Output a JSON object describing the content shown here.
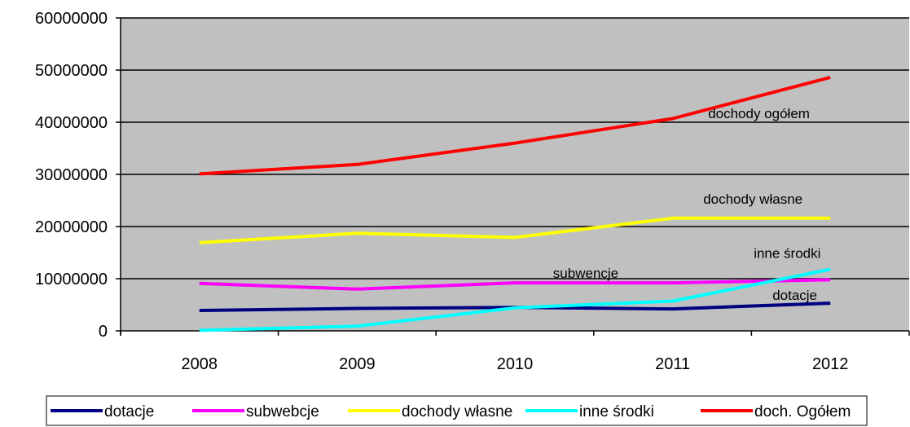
{
  "chart_data": {
    "type": "line",
    "categories": [
      "2008",
      "2009",
      "2010",
      "2011",
      "2012"
    ],
    "ylim": [
      0,
      60000000
    ],
    "y_ticks": [
      "0",
      "10000000",
      "20000000",
      "30000000",
      "40000000",
      "50000000",
      "60000000"
    ],
    "grid": true,
    "plot_background": "#c0c0c0",
    "legend_position": "bottom",
    "series": [
      {
        "name": "dotacje",
        "color": "#000080",
        "values": [
          3900000,
          4300000,
          4500000,
          4200000,
          5300000
        ]
      },
      {
        "name": "subwebcje",
        "color": "#ff00ff",
        "values": [
          9100000,
          8000000,
          9200000,
          9200000,
          9800000
        ]
      },
      {
        "name": "dochody własne",
        "color": "#ffff00",
        "values": [
          16900000,
          18700000,
          17900000,
          21600000,
          21600000
        ]
      },
      {
        "name": "inne środki",
        "color": "#00ffff",
        "values": [
          100000,
          900000,
          4400000,
          5700000,
          11800000
        ]
      },
      {
        "name": "doch. Ogółem",
        "color": "#ff0000",
        "values": [
          30100000,
          31900000,
          36000000,
          40700000,
          48600000
        ]
      }
    ],
    "annotations": [
      {
        "text": "dochody ogółem",
        "series": "doch. Ogółem"
      },
      {
        "text": "dochody własne",
        "series": "dochody własne"
      },
      {
        "text": "inne środki",
        "series": "inne środki"
      },
      {
        "text": "subwencje",
        "series": "subwebcje"
      },
      {
        "text": "dotacje",
        "series": "dotacje"
      }
    ]
  }
}
